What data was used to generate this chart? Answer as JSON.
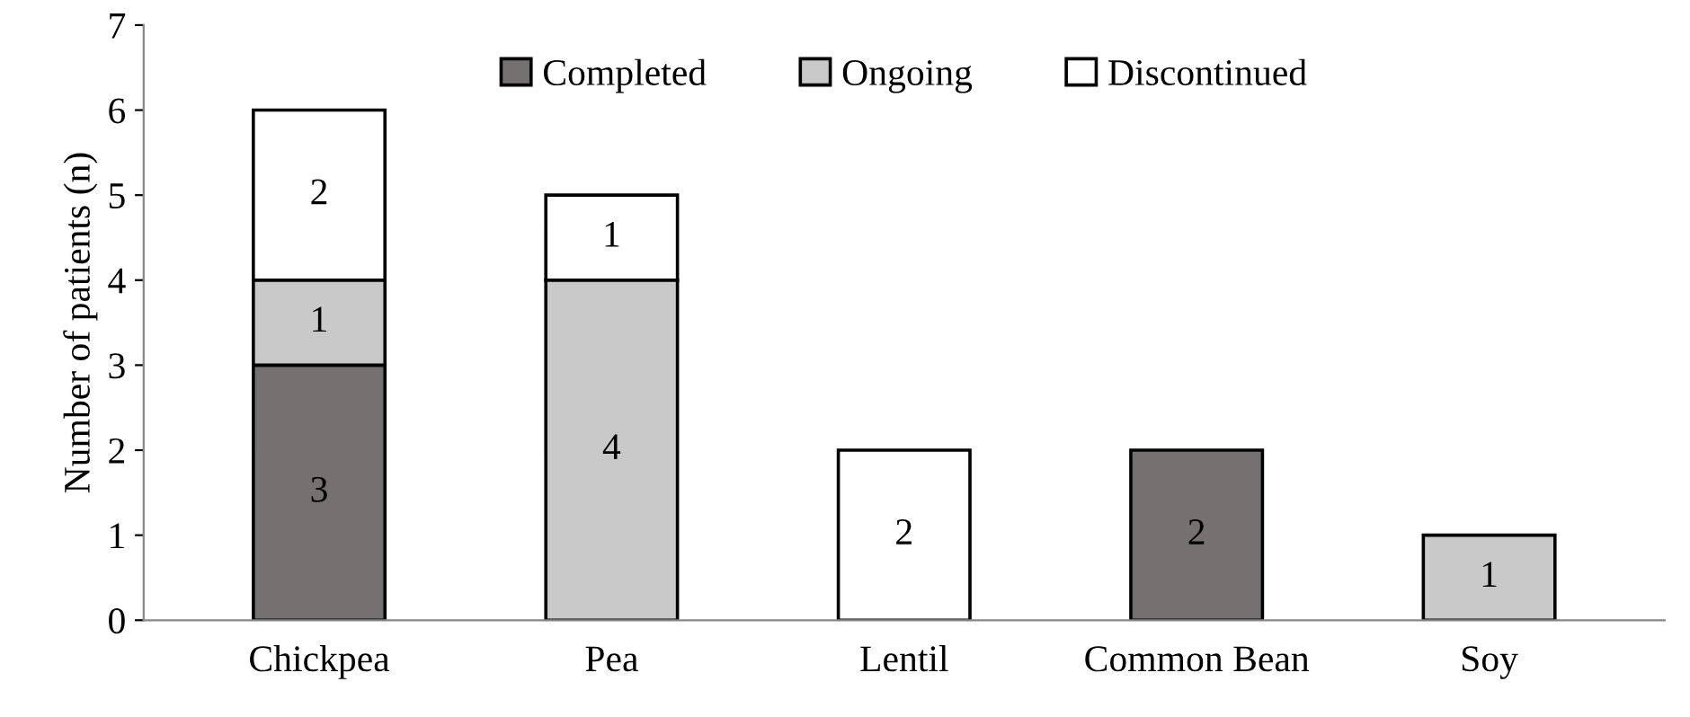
{
  "chart_data": {
    "type": "bar",
    "stacked": true,
    "ylabel": "Number of patients (n)",
    "categories": [
      "Chickpea",
      "Pea",
      "Lentil",
      "Common Bean",
      "Soy"
    ],
    "series": [
      {
        "name": "Completed",
        "color": "#767171",
        "values": [
          3,
          null,
          null,
          2,
          null
        ]
      },
      {
        "name": "Ongoing",
        "color": "#c9c9c9",
        "values": [
          1,
          4,
          null,
          null,
          1
        ]
      },
      {
        "name": "Discontinued",
        "color": "#ffffff",
        "values": [
          2,
          1,
          2,
          null,
          null
        ]
      }
    ],
    "ylim": [
      0,
      7
    ],
    "yticks": [
      0,
      1,
      2,
      3,
      4,
      5,
      6,
      7
    ],
    "grid": false,
    "legend": "top",
    "data_labels": true
  }
}
